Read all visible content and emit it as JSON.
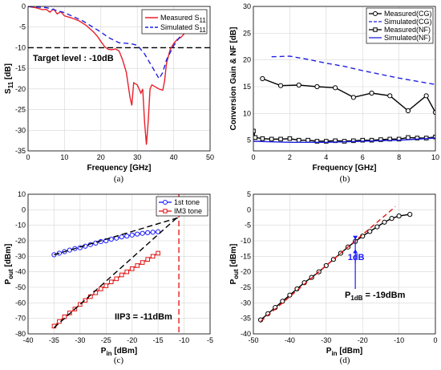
{
  "chart_data": [
    {
      "id": "a",
      "type": "line",
      "caption": "(a)",
      "xlabel": "Frequency [GHz]",
      "ylabel": "S11 [dB]",
      "ylabel_main": "S",
      "ylabel_sub": "11",
      "ylabel_unit": " [dB]",
      "xlim": [
        0,
        50
      ],
      "ylim": [
        -35,
        0
      ],
      "xticks": [
        0,
        10,
        20,
        30,
        40,
        50
      ],
      "yticks": [
        0,
        -5,
        -10,
        -15,
        -20,
        -25,
        -30,
        -35
      ],
      "grid": true,
      "legend": "top-right",
      "annotation": "Target level : -10dB",
      "hline": -10,
      "series": [
        {
          "name": "Measured S11",
          "name_main": "Measured S",
          "name_sub": "11",
          "color": "#e8202a",
          "dash": "none",
          "x": [
            0,
            2,
            4,
            5,
            6,
            7,
            8,
            9,
            10,
            12,
            14,
            16,
            18,
            19,
            20,
            21,
            22,
            23,
            24,
            25,
            26,
            27,
            28,
            28.5,
            29,
            30,
            31,
            31.5,
            32,
            32.5,
            33,
            33.5,
            34,
            35,
            36,
            37,
            37.5,
            38,
            39,
            40,
            41,
            42,
            43
          ],
          "y": [
            0,
            -0.3,
            -0.8,
            -0.7,
            -1.4,
            -0.6,
            -1.8,
            -1.3,
            -2.3,
            -2.8,
            -3.5,
            -4.6,
            -6.2,
            -7.2,
            -8.5,
            -9.7,
            -10.4,
            -10.5,
            -10.3,
            -10.8,
            -13,
            -16,
            -22,
            -24,
            -18.5,
            -19,
            -21,
            -20,
            -28,
            -33.5,
            -28,
            -20,
            -19,
            -19.5,
            -20,
            -20.3,
            -18,
            -14,
            -10.5,
            -9,
            -8,
            -7.5,
            -6.5
          ]
        },
        {
          "name": "Simulated S11",
          "name_main": "Simulated S",
          "name_sub": "11",
          "color": "#2020e0",
          "dash": "6,4",
          "x": [
            0,
            5,
            10,
            15,
            20,
            22,
            25,
            28,
            30,
            32,
            34,
            36,
            37,
            38,
            40,
            42
          ],
          "y": [
            0,
            -0.3,
            -1.5,
            -3.5,
            -6.2,
            -7.5,
            -8.8,
            -9,
            -9.4,
            -11.5,
            -14.5,
            -17.5,
            -16,
            -13,
            -9.5,
            -7
          ]
        }
      ]
    },
    {
      "id": "b",
      "type": "line",
      "caption": "(b)",
      "xlabel": "Frequency [GHz]",
      "ylabel": "Conversion Gain & NF [dB]",
      "xlim": [
        0,
        10
      ],
      "ylim": [
        3,
        30
      ],
      "xticks": [
        0,
        2,
        4,
        6,
        8,
        10
      ],
      "yticks": [
        5,
        10,
        15,
        20,
        25,
        30
      ],
      "grid": true,
      "legend": "top-right",
      "series": [
        {
          "name": "Measured(CG)",
          "color": "#000000",
          "dash": "none",
          "marker": "circle",
          "x": [
            0.5,
            1.5,
            2.5,
            3.5,
            4.5,
            5.5,
            6.5,
            7.5,
            8.5,
            9.5,
            10
          ],
          "y": [
            16.5,
            15.2,
            15.3,
            15.0,
            14.8,
            13.0,
            13.8,
            13.3,
            10.5,
            13.3,
            10.2
          ]
        },
        {
          "name": "Simulated(CG)",
          "color": "#2020e0",
          "dash": "6,4",
          "x": [
            1,
            2,
            3,
            4,
            5,
            6,
            7,
            8,
            9,
            10
          ],
          "y": [
            20.6,
            20.7,
            20.1,
            19.4,
            18.8,
            18.0,
            17.3,
            16.6,
            16.0,
            15.4
          ]
        },
        {
          "name": "Measured(NF)",
          "color": "#000000",
          "dash": "none",
          "marker": "square",
          "x": [
            0,
            0.1,
            0.5,
            1,
            1.5,
            2,
            2.5,
            3,
            3.5,
            4,
            4.5,
            5,
            5.5,
            6,
            6.5,
            7,
            7.5,
            8,
            8.5,
            9,
            9.5,
            10
          ],
          "y": [
            6.7,
            5.5,
            5.3,
            5.2,
            5.2,
            5.3,
            5.0,
            5.0,
            4.8,
            4.8,
            4.9,
            4.8,
            4.9,
            5.0,
            5.0,
            5.1,
            5.2,
            5.2,
            5.5,
            5.4,
            5.4,
            5.6
          ]
        },
        {
          "name": "Simulated(NF)",
          "color": "#2020e0",
          "dash": "none",
          "x": [
            0,
            1,
            2,
            3,
            4,
            5,
            6,
            7,
            8,
            9,
            10
          ],
          "y": [
            4.8,
            4.7,
            4.6,
            4.6,
            4.6,
            4.7,
            4.8,
            4.9,
            5.0,
            5.2,
            5.4
          ]
        }
      ]
    },
    {
      "id": "c",
      "type": "line",
      "caption": "(c)",
      "xlabel": "Pin [dBm]",
      "xlabel_main": "P",
      "xlabel_sub": "in",
      "xlabel_unit": " [dBm]",
      "ylabel": "Pout [dBm]",
      "ylabel_main": "P",
      "ylabel_sub": "out",
      "ylabel_unit": " [dBm]",
      "xlim": [
        -40,
        -5
      ],
      "ylim": [
        -80,
        10
      ],
      "xticks": [
        -40,
        -35,
        -30,
        -25,
        -20,
        -15,
        -10,
        -5
      ],
      "yticks": [
        10,
        0,
        -10,
        -20,
        -30,
        -40,
        -50,
        -60,
        -70,
        -80
      ],
      "grid": true,
      "legend": "top-right",
      "annotation": "IIP3 = -11dBm",
      "vline": -11,
      "series": [
        {
          "name": "1st tone",
          "color": "#1a1aff",
          "dash": "none",
          "marker": "circle",
          "x": [
            -35,
            -34,
            -33,
            -32,
            -31,
            -30,
            -29,
            -28,
            -27,
            -26,
            -25,
            -24,
            -23,
            -22,
            -21,
            -20,
            -19,
            -18,
            -17,
            -16,
            -15
          ],
          "y": [
            -29,
            -28,
            -27,
            -26,
            -25,
            -24.5,
            -23.5,
            -22.5,
            -21.5,
            -20.5,
            -20,
            -19,
            -18.3,
            -17.5,
            -17,
            -16.3,
            -15.7,
            -15.2,
            -14.8,
            -14.5,
            -14.2
          ]
        },
        {
          "name": "IM3 tone",
          "color": "#e01010",
          "dash": "none",
          "marker": "square",
          "x": [
            -35,
            -34,
            -33,
            -32,
            -31,
            -30,
            -29,
            -28,
            -27,
            -26,
            -25,
            -24,
            -23,
            -22,
            -21,
            -20,
            -19,
            -18,
            -17,
            -16,
            -15
          ],
          "y": [
            -75,
            -72,
            -69,
            -66.5,
            -64,
            -61,
            -58.5,
            -56,
            -53.5,
            -51,
            -49,
            -46.5,
            -44.5,
            -42,
            -40,
            -38,
            -36,
            -34,
            -32,
            -30,
            -28
          ]
        },
        {
          "name": "",
          "color": "#000000",
          "dash": "7,4",
          "x": [
            -35,
            -11
          ],
          "y": [
            -29,
            -5
          ]
        },
        {
          "name": "",
          "color": "#000000",
          "dash": "7,4",
          "x": [
            -35,
            -11
          ],
          "y": [
            -76,
            -4
          ]
        }
      ]
    },
    {
      "id": "d",
      "type": "line",
      "caption": "(d)",
      "xlabel": "Pin [dBm]",
      "xlabel_main": "P",
      "xlabel_sub": "in",
      "xlabel_unit": " [dBm]",
      "ylabel": "Pout [dBm]",
      "ylabel_main": "P",
      "ylabel_sub": "out",
      "ylabel_unit": " [dBm]",
      "xlim": [
        -50,
        0
      ],
      "ylim": [
        -40,
        5
      ],
      "xticks": [
        -50,
        -40,
        -30,
        -20,
        -10,
        0
      ],
      "yticks": [
        5,
        0,
        -5,
        -10,
        -15,
        -20,
        -25,
        -30,
        -35,
        -40
      ],
      "grid": true,
      "annotation_1db": "1dB",
      "annotation_p1db": "P1dB = -19dBm",
      "annotation_p1db_main": "P",
      "annotation_p1db_sub": "1dB",
      "annotation_p1db_value": " = -19dBm",
      "series": [
        {
          "name": "",
          "color": "#000000",
          "dash": "none",
          "marker": "circle",
          "x": [
            -48,
            -46,
            -44,
            -42,
            -40,
            -38,
            -36,
            -34,
            -32,
            -30,
            -28,
            -26,
            -24,
            -22,
            -20,
            -18,
            -16,
            -14,
            -12,
            -10,
            -7
          ],
          "y": [
            -35.5,
            -33.5,
            -31.5,
            -29.5,
            -27.5,
            -25.5,
            -23.5,
            -21.8,
            -20,
            -18,
            -16,
            -14,
            -12,
            -10.2,
            -8.5,
            -7,
            -5.5,
            -4,
            -2.8,
            -2,
            -1.5
          ]
        },
        {
          "name": "",
          "color": "#e01010",
          "dash": "6,4",
          "x": [
            -48,
            -11
          ],
          "y": [
            -36,
            1
          ]
        }
      ]
    }
  ]
}
